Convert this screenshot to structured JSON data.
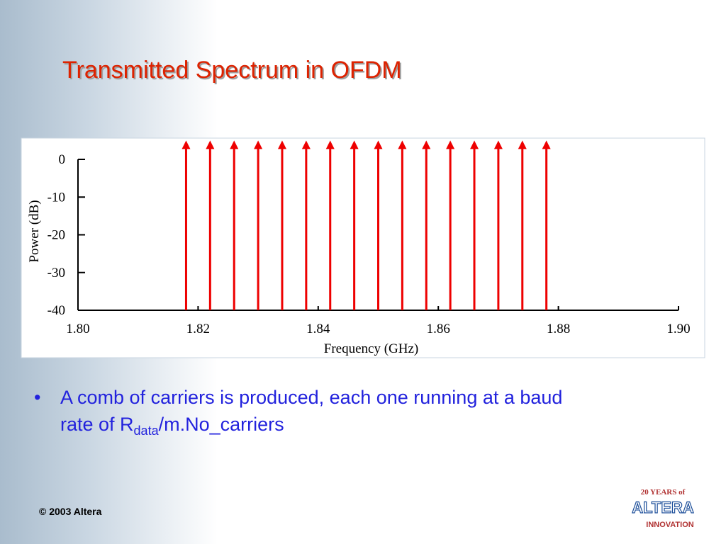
{
  "title": "Transmitted Spectrum in OFDM",
  "chart_data": {
    "type": "stem",
    "color": "#ee0000",
    "x": [
      1.818,
      1.822,
      1.826,
      1.83,
      1.834,
      1.838,
      1.842,
      1.846,
      1.85,
      1.854,
      1.858,
      1.862,
      1.866,
      1.87,
      1.874,
      1.878
    ],
    "values": [
      5,
      5,
      5,
      5,
      5,
      5,
      5,
      5,
      5,
      5,
      5,
      5,
      5,
      5,
      5,
      5
    ],
    "xlim": [
      1.8,
      1.9
    ],
    "xticks": [
      {
        "value": 1.8,
        "label": "1.80"
      },
      1.82,
      1.84,
      1.86,
      1.88,
      {
        "value": 1.9,
        "label": "1.90"
      }
    ],
    "ylim": [
      -40,
      0
    ],
    "yticks": [
      0,
      -10,
      -20,
      -30,
      -40
    ],
    "xlabel": "Frequency (GHz)",
    "ylabel": "Power (dB)"
  },
  "bullet": {
    "text": "A comb of carriers is produced, each one running at a baud rate of R",
    "subscript": "data",
    "suffix": "/m.No_carriers"
  },
  "footer": "© 2003 Altera",
  "logo": {
    "top": "20 YEARS of",
    "name": "ALTERA",
    "bottom": "INNOVATION"
  }
}
